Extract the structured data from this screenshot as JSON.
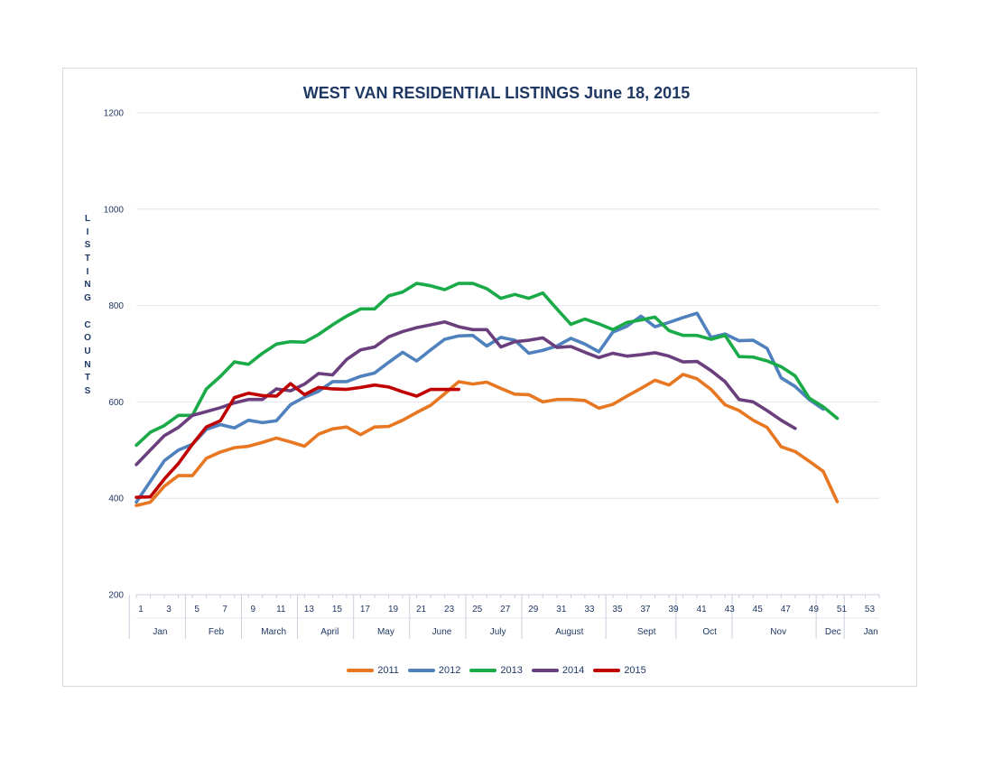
{
  "chart_data": {
    "type": "line",
    "title": "WEST VAN RESIDENTIAL LISTINGS June 18, 2015",
    "ylabel": "LISTING COUNTS",
    "ylim": [
      200,
      1200
    ],
    "yticks": [
      200,
      400,
      600,
      800,
      1000,
      1200
    ],
    "xlim": [
      1,
      54
    ],
    "xticks": [
      1,
      3,
      5,
      7,
      9,
      11,
      13,
      15,
      17,
      19,
      21,
      23,
      25,
      27,
      29,
      31,
      33,
      35,
      37,
      39,
      41,
      43,
      45,
      47,
      49,
      51,
      53
    ],
    "month_labels": [
      {
        "label": "Jan",
        "x": 2.7
      },
      {
        "label": "Feb",
        "x": 6.7
      },
      {
        "label": "March",
        "x": 10.8
      },
      {
        "label": "April",
        "x": 14.8
      },
      {
        "label": "May",
        "x": 18.8
      },
      {
        "label": "June",
        "x": 22.8
      },
      {
        "label": "July",
        "x": 26.8
      },
      {
        "label": "August",
        "x": 31.9
      },
      {
        "label": "Sept",
        "x": 37.4
      },
      {
        "label": "Oct",
        "x": 41.9
      },
      {
        "label": "Nov",
        "x": 46.8
      },
      {
        "label": "Dec",
        "x": 50.7
      },
      {
        "label": "Jan",
        "x": 53.4
      }
    ],
    "month_dividers": [
      1,
      5,
      9,
      13,
      17,
      21,
      25,
      29,
      35,
      40,
      44,
      50,
      52
    ],
    "grid": true,
    "legend_position": "bottom",
    "series": [
      {
        "name": "2011",
        "color": "#e87722",
        "x": [
          1,
          2,
          3,
          4,
          5,
          6,
          7,
          8,
          9,
          10,
          11,
          12,
          13,
          14,
          15,
          16,
          17,
          18,
          19,
          20,
          21,
          22,
          23,
          24,
          25,
          26,
          27,
          28,
          29,
          30,
          31,
          32,
          33,
          34,
          35,
          36,
          37,
          38,
          39,
          40,
          41,
          42,
          43,
          44,
          45,
          46,
          47,
          48,
          49,
          50,
          51
        ],
        "y": [
          385,
          392,
          425,
          447,
          447,
          483,
          496,
          505,
          508,
          516,
          525,
          517,
          508,
          533,
          544,
          548,
          532,
          548,
          549,
          562,
          578,
          593,
          617,
          642,
          637,
          641,
          628,
          616,
          615,
          600,
          605,
          605,
          603,
          587,
          595,
          612,
          628,
          645,
          635,
          657,
          648,
          626,
          594,
          582,
          562,
          547,
          507,
          497,
          477,
          456,
          393
        ]
      },
      {
        "name": "2012",
        "color": "#4e81bd",
        "x": [
          1,
          2,
          3,
          4,
          5,
          6,
          7,
          8,
          9,
          10,
          11,
          12,
          13,
          14,
          15,
          16,
          17,
          18,
          19,
          20,
          21,
          22,
          23,
          24,
          25,
          26,
          27,
          28,
          29,
          30,
          31,
          32,
          33,
          34,
          35,
          36,
          37,
          38,
          39,
          40,
          41,
          42,
          43,
          44,
          45,
          46,
          47,
          48,
          49,
          50
        ],
        "y": [
          392,
          435,
          478,
          500,
          512,
          543,
          553,
          546,
          562,
          557,
          561,
          594,
          610,
          622,
          642,
          642,
          653,
          660,
          682,
          703,
          685,
          708,
          730,
          737,
          738,
          716,
          734,
          728,
          701,
          707,
          716,
          732,
          720,
          704,
          745,
          757,
          778,
          756,
          765,
          775,
          784,
          734,
          741,
          727,
          728,
          711,
          650,
          632,
          605,
          585
        ]
      },
      {
        "name": "2013",
        "color": "#1aab48",
        "x": [
          1,
          2,
          3,
          4,
          5,
          6,
          7,
          8,
          9,
          10,
          11,
          12,
          13,
          14,
          15,
          16,
          17,
          18,
          19,
          20,
          21,
          22,
          23,
          24,
          25,
          26,
          27,
          28,
          29,
          30,
          31,
          32,
          33,
          34,
          35,
          36,
          37,
          38,
          39,
          40,
          41,
          42,
          43,
          44,
          45,
          46,
          47,
          48,
          49,
          50,
          51
        ],
        "y": [
          510,
          537,
          551,
          572,
          572,
          627,
          653,
          683,
          678,
          701,
          720,
          725,
          724,
          740,
          760,
          778,
          793,
          793,
          820,
          828,
          846,
          841,
          833,
          846,
          846,
          835,
          815,
          823,
          815,
          826,
          793,
          761,
          772,
          762,
          750,
          765,
          770,
          776,
          748,
          738,
          738,
          730,
          738,
          694,
          693,
          685,
          673,
          654,
          608,
          590,
          566
        ]
      },
      {
        "name": "2014",
        "color": "#6b3f7d",
        "x": [
          1,
          2,
          3,
          4,
          5,
          6,
          7,
          8,
          9,
          10,
          11,
          12,
          13,
          14,
          15,
          16,
          17,
          18,
          19,
          20,
          21,
          22,
          23,
          24,
          25,
          26,
          27,
          28,
          29,
          30,
          31,
          32,
          33,
          34,
          35,
          36,
          37,
          38,
          39,
          40,
          41,
          42,
          43,
          44,
          45,
          46,
          47,
          48
        ],
        "y": [
          470,
          500,
          530,
          547,
          572,
          580,
          588,
          598,
          605,
          605,
          627,
          623,
          637,
          659,
          656,
          688,
          708,
          714,
          735,
          746,
          754,
          760,
          766,
          756,
          750,
          750,
          714,
          725,
          728,
          733,
          713,
          715,
          703,
          692,
          701,
          695,
          698,
          702,
          695,
          683,
          684,
          665,
          642,
          605,
          600,
          582,
          562,
          545
        ]
      },
      {
        "name": "2015",
        "color": "#c00000",
        "x": [
          1,
          2,
          3,
          4,
          5,
          6,
          7,
          8,
          9,
          10,
          11,
          12,
          13,
          14,
          15,
          16,
          17,
          18,
          19,
          20,
          21,
          22,
          23,
          24
        ],
        "y": [
          402,
          403,
          440,
          472,
          512,
          548,
          561,
          609,
          618,
          613,
          612,
          638,
          615,
          630,
          627,
          626,
          630,
          635,
          631,
          621,
          612,
          626,
          626,
          626
        ]
      }
    ]
  }
}
